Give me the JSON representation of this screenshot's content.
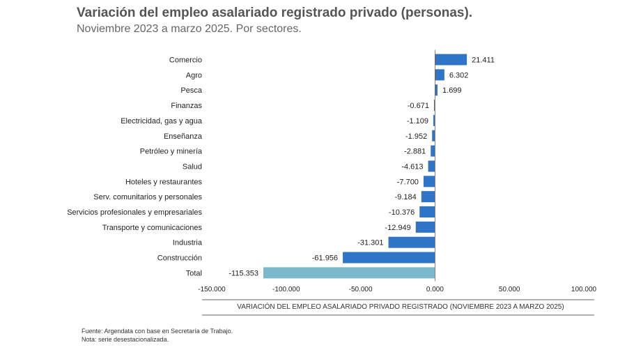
{
  "header": {
    "title": "Variación del empleo asalariado registrado privado (personas).",
    "subtitle": "Noviembre 2023 a marzo 2025. Por sectores."
  },
  "chart_data": {
    "type": "bar",
    "orientation": "horizontal",
    "title": "Variación del empleo asalariado registrado privado (personas).",
    "subtitle": "Noviembre 2023 a marzo 2025. Por sectores.",
    "xlabel": "VARIACIÓN DEL EMPLEO ASALARIADO PRIVADO REGISTRADO (NOVIEMBRE 2023 A MARZO 2025)",
    "categories": [
      "Comercio",
      "Agro",
      "Pesca",
      "Finanzas",
      "Electricidad, gas y agua",
      "Enseñanza",
      "Petróleo y minería",
      "Salud",
      "Hoteles y restaurantes",
      "Serv. comunitarios y personales",
      "Servicios profesionales y empresariales",
      "Transporte y comunicaciones",
      "Industria",
      "Construcción",
      "Total"
    ],
    "values": [
      21411,
      6302,
      1699,
      -671,
      -1109,
      -1952,
      -2881,
      -4613,
      -7700,
      -9184,
      -10376,
      -12949,
      -31301,
      -61956,
      -115353
    ],
    "value_labels": [
      "21.411",
      "6.302",
      "1.699",
      "-0.671",
      "-1.109",
      "-1.952",
      "-2.881",
      "-4.613",
      "-7.700",
      "-9.184",
      "-10.376",
      "-12.949",
      "-31.301",
      "-61.956",
      "-115.353"
    ],
    "xlim": [
      -150000,
      100000
    ],
    "xticks": [
      -150000,
      -100000,
      -50000,
      0,
      50000,
      100000
    ],
    "xtick_labels": [
      "-150.000",
      "-100.000",
      "-50.000",
      "0.000",
      "50.000",
      "100.000"
    ],
    "colors": {
      "sector": "#2e75c7",
      "total": "#7ab8cc"
    },
    "grid": false
  },
  "footer": {
    "source": "Fuente: Argendata con base en Secretaría de Trabajo.",
    "note": "Nota: serie desestacionalizada."
  }
}
